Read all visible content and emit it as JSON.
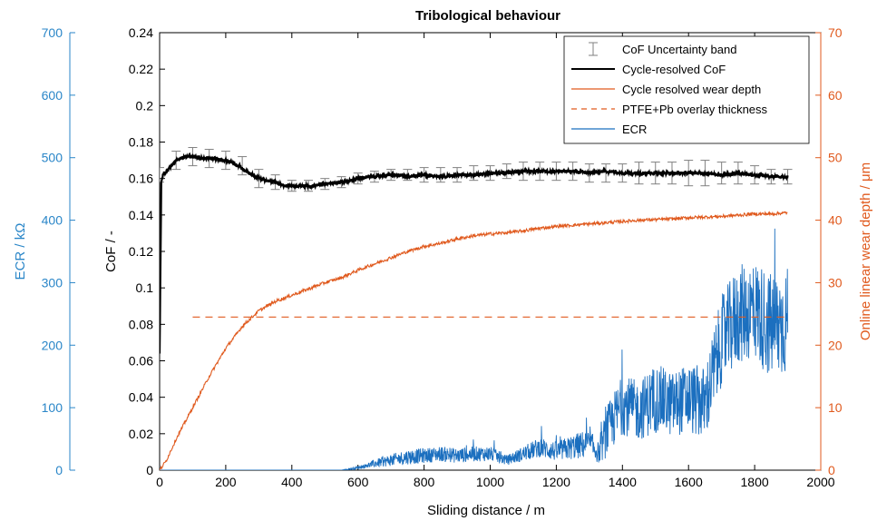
{
  "chart_data": {
    "type": "line",
    "title": "Tribological behaviour",
    "xlabel": "Sliding distance / m",
    "xlim": [
      0,
      2000
    ],
    "x_ticks": [
      "0",
      "200",
      "400",
      "600",
      "800",
      "1000",
      "1200",
      "1400",
      "1600",
      "1800",
      "2000"
    ],
    "axes": {
      "cof": {
        "label": "CoF / -",
        "ylim": [
          0,
          0.24
        ],
        "ticks": [
          "0",
          "0.02",
          "0.04",
          "0.06",
          "0.08",
          "0.1",
          "0.12",
          "0.14",
          "0.16",
          "0.18",
          "0.2",
          "0.22",
          "0.24"
        ],
        "color": "#000000"
      },
      "ecr": {
        "label": "ECR / kΩ",
        "ylim": [
          0,
          700
        ],
        "ticks": [
          "0",
          "100",
          "200",
          "300",
          "400",
          "500",
          "600",
          "700"
        ],
        "color": "#2a86c8"
      },
      "wear": {
        "label": "Online linear wear depth / μm",
        "ylim": [
          0,
          70
        ],
        "ticks": [
          "0",
          "10",
          "20",
          "30",
          "40",
          "50",
          "60",
          "70"
        ],
        "color": "#e05a1e"
      }
    },
    "legend_position": "top-right",
    "series": [
      {
        "name": "CoF Uncertainty band",
        "axis": "cof",
        "color": "#808080",
        "x": [
          0,
          50,
          100,
          150,
          200,
          250,
          300,
          350,
          400,
          450,
          500,
          550,
          600,
          650,
          700,
          750,
          800,
          850,
          900,
          950,
          1000,
          1050,
          1100,
          1150,
          1200,
          1250,
          1300,
          1350,
          1400,
          1450,
          1500,
          1550,
          1600,
          1650,
          1700,
          1750,
          1800,
          1850,
          1900
        ],
        "y": [
          0.162,
          0.17,
          0.172,
          0.171,
          0.17,
          0.167,
          0.16,
          0.158,
          0.156,
          0.156,
          0.157,
          0.158,
          0.16,
          0.161,
          0.162,
          0.162,
          0.162,
          0.162,
          0.162,
          0.163,
          0.163,
          0.164,
          0.164,
          0.164,
          0.164,
          0.164,
          0.163,
          0.163,
          0.163,
          0.163,
          0.163,
          0.163,
          0.163,
          0.163,
          0.163,
          0.163,
          0.162,
          0.161,
          0.161
        ],
        "err": [
          0.004,
          0.005,
          0.005,
          0.005,
          0.005,
          0.005,
          0.005,
          0.004,
          0.003,
          0.003,
          0.003,
          0.003,
          0.003,
          0.003,
          0.003,
          0.003,
          0.004,
          0.004,
          0.004,
          0.004,
          0.004,
          0.004,
          0.005,
          0.005,
          0.005,
          0.005,
          0.005,
          0.005,
          0.005,
          0.006,
          0.006,
          0.006,
          0.007,
          0.007,
          0.006,
          0.006,
          0.005,
          0.004,
          0.004
        ]
      },
      {
        "name": "Cycle-resolved CoF",
        "axis": "cof",
        "color": "#000000",
        "x": [
          0,
          5,
          10,
          20,
          40,
          60,
          80,
          100,
          130,
          160,
          200,
          230,
          260,
          290,
          320,
          350,
          380,
          400,
          430,
          460,
          500,
          550,
          600,
          650,
          700,
          750,
          800,
          850,
          900,
          950,
          1000,
          1050,
          1100,
          1150,
          1200,
          1250,
          1300,
          1350,
          1400,
          1450,
          1500,
          1550,
          1600,
          1650,
          1700,
          1750,
          1800,
          1850,
          1900
        ],
        "y": [
          0.064,
          0.158,
          0.162,
          0.164,
          0.168,
          0.171,
          0.172,
          0.172,
          0.171,
          0.171,
          0.17,
          0.168,
          0.164,
          0.161,
          0.159,
          0.158,
          0.156,
          0.156,
          0.156,
          0.156,
          0.157,
          0.158,
          0.16,
          0.161,
          0.162,
          0.161,
          0.162,
          0.161,
          0.162,
          0.162,
          0.163,
          0.163,
          0.164,
          0.164,
          0.164,
          0.164,
          0.163,
          0.164,
          0.163,
          0.163,
          0.163,
          0.163,
          0.163,
          0.163,
          0.162,
          0.163,
          0.162,
          0.161,
          0.161
        ]
      },
      {
        "name": "Cycle resolved wear depth",
        "axis": "wear",
        "color": "#e05a1e",
        "x": [
          0,
          20,
          50,
          100,
          150,
          200,
          250,
          300,
          350,
          400,
          450,
          500,
          550,
          600,
          650,
          700,
          750,
          800,
          850,
          900,
          950,
          1000,
          1050,
          1100,
          1150,
          1200,
          1250,
          1300,
          1350,
          1400,
          1450,
          1500,
          1550,
          1600,
          1650,
          1700,
          1750,
          1800,
          1850,
          1900
        ],
        "y": [
          0,
          1.5,
          5,
          10,
          15,
          19.5,
          23,
          25.5,
          27,
          28,
          29,
          30,
          30.8,
          32,
          33,
          34,
          35,
          35.8,
          36.3,
          37,
          37.5,
          37.8,
          38,
          38.3,
          38.7,
          39,
          39.2,
          39.4,
          39.6,
          39.8,
          40,
          40.1,
          40.2,
          40.4,
          40.5,
          40.6,
          40.8,
          41,
          41,
          41.2
        ],
        "noise": 0.25
      },
      {
        "name": "PTFE+Pb overlay thickness",
        "axis": "wear",
        "color": "#e05a1e",
        "dashed": true,
        "x": [
          100,
          1900
        ],
        "y": [
          24.5,
          24.5
        ]
      },
      {
        "name": "ECR",
        "axis": "ecr",
        "color": "#1b6fbf",
        "x": [
          0,
          550,
          580,
          620,
          650,
          700,
          750,
          800,
          850,
          900,
          950,
          1000,
          1050,
          1100,
          1150,
          1200,
          1250,
          1300,
          1330,
          1350,
          1400,
          1450,
          1500,
          1550,
          1600,
          1650,
          1700,
          1750,
          1800,
          1850,
          1900
        ],
        "y": [
          0,
          0,
          2,
          6,
          10,
          15,
          20,
          22,
          25,
          22,
          25,
          25,
          15,
          25,
          35,
          28,
          35,
          40,
          25,
          55,
          100,
          90,
          110,
          100,
          110,
          100,
          200,
          240,
          250,
          220,
          230
        ],
        "noise": [
          0,
          0,
          2,
          4,
          8,
          12,
          15,
          15,
          15,
          15,
          15,
          15,
          10,
          15,
          20,
          20,
          25,
          30,
          20,
          50,
          60,
          60,
          70,
          65,
          70,
          75,
          90,
          100,
          100,
          110,
          110
        ]
      }
    ]
  }
}
